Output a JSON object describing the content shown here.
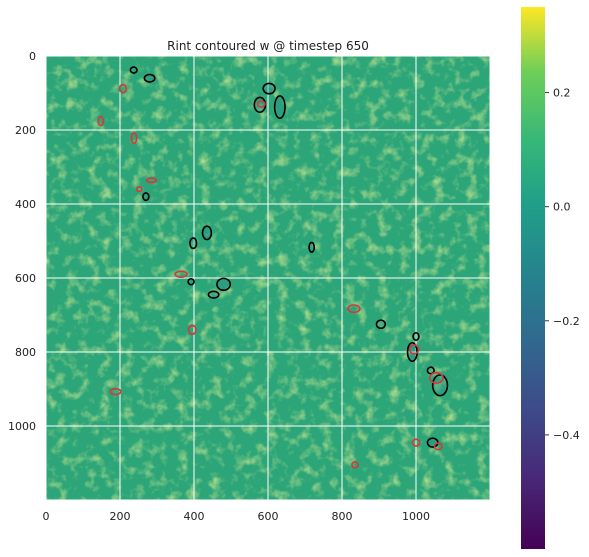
{
  "chart_data": {
    "type": "heatmap",
    "title": "Rint contoured w @ timestep 650",
    "xlabel": "",
    "ylabel": "",
    "xlim": [
      0,
      1200
    ],
    "ylim": [
      1200,
      0
    ],
    "x_ticks": [
      0,
      200,
      400,
      600,
      800,
      1000
    ],
    "y_ticks": [
      0,
      200,
      400,
      600,
      800,
      1000
    ],
    "x_tick_labels": [
      "0",
      "200",
      "400",
      "600",
      "800",
      "1000"
    ],
    "y_tick_labels": [
      "0",
      "200",
      "400",
      "600",
      "800",
      "1000"
    ],
    "grid": true,
    "colormap": "viridis",
    "colorbar": {
      "range": [
        -0.6,
        0.35
      ],
      "ticks": [
        0.2,
        0.0,
        -0.2,
        -0.4
      ],
      "tick_labels": [
        "0.2",
        "0.0",
        "−0.2",
        "−0.4"
      ]
    },
    "contours": {
      "black": [
        {
          "cx": 237,
          "cy": 38,
          "rx": 9,
          "ry": 8
        },
        {
          "cx": 280,
          "cy": 60,
          "rx": 14,
          "ry": 10
        },
        {
          "cx": 603,
          "cy": 88,
          "rx": 16,
          "ry": 14
        },
        {
          "cx": 578,
          "cy": 132,
          "rx": 15,
          "ry": 20
        },
        {
          "cx": 632,
          "cy": 138,
          "rx": 14,
          "ry": 30
        },
        {
          "cx": 270,
          "cy": 380,
          "rx": 8,
          "ry": 10
        },
        {
          "cx": 435,
          "cy": 478,
          "rx": 12,
          "ry": 18
        },
        {
          "cx": 398,
          "cy": 506,
          "rx": 9,
          "ry": 14
        },
        {
          "cx": 718,
          "cy": 517,
          "rx": 7,
          "ry": 13
        },
        {
          "cx": 480,
          "cy": 617,
          "rx": 18,
          "ry": 16
        },
        {
          "cx": 453,
          "cy": 645,
          "rx": 14,
          "ry": 9
        },
        {
          "cx": 392,
          "cy": 610,
          "rx": 8,
          "ry": 8
        },
        {
          "cx": 905,
          "cy": 725,
          "rx": 12,
          "ry": 11
        },
        {
          "cx": 1000,
          "cy": 758,
          "rx": 8,
          "ry": 10
        },
        {
          "cx": 990,
          "cy": 800,
          "rx": 13,
          "ry": 25
        },
        {
          "cx": 1065,
          "cy": 890,
          "rx": 20,
          "ry": 28
        },
        {
          "cx": 1040,
          "cy": 850,
          "rx": 9,
          "ry": 9
        },
        {
          "cx": 1045,
          "cy": 1045,
          "rx": 14,
          "ry": 12
        }
      ],
      "red": [
        {
          "cx": 208,
          "cy": 88,
          "rx": 9,
          "ry": 11
        },
        {
          "cx": 148,
          "cy": 176,
          "rx": 7,
          "ry": 12
        },
        {
          "cx": 238,
          "cy": 222,
          "rx": 7,
          "ry": 14
        },
        {
          "cx": 252,
          "cy": 360,
          "rx": 7,
          "ry": 6
        },
        {
          "cx": 285,
          "cy": 336,
          "rx": 13,
          "ry": 6
        },
        {
          "cx": 365,
          "cy": 590,
          "rx": 16,
          "ry": 8
        },
        {
          "cx": 395,
          "cy": 740,
          "rx": 10,
          "ry": 12
        },
        {
          "cx": 832,
          "cy": 683,
          "rx": 16,
          "ry": 10
        },
        {
          "cx": 995,
          "cy": 793,
          "rx": 12,
          "ry": 12
        },
        {
          "cx": 1055,
          "cy": 870,
          "rx": 18,
          "ry": 14
        },
        {
          "cx": 1000,
          "cy": 1045,
          "rx": 10,
          "ry": 9
        },
        {
          "cx": 1060,
          "cy": 1055,
          "rx": 10,
          "ry": 9
        },
        {
          "cx": 835,
          "cy": 1105,
          "rx": 8,
          "ry": 8
        },
        {
          "cx": 188,
          "cy": 907,
          "rx": 14,
          "ry": 8
        },
        {
          "cx": 582,
          "cy": 130,
          "rx": 10,
          "ry": 8
        }
      ]
    }
  }
}
